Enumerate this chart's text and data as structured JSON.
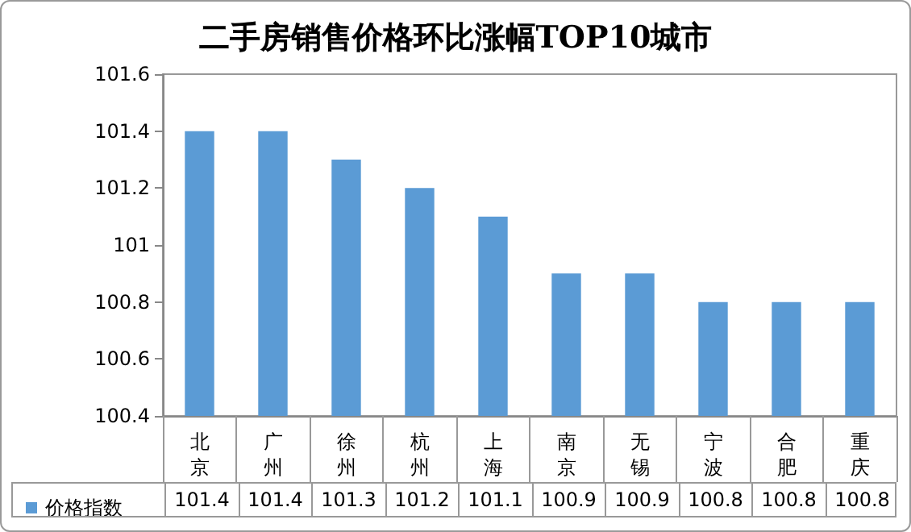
{
  "chart_data": {
    "type": "bar",
    "title": "二手房销售价格环比涨幅TOP10城市",
    "categories": [
      "北京",
      "广州",
      "徐州",
      "杭州",
      "上海",
      "南京",
      "无锡",
      "宁波",
      "合肥",
      "重庆"
    ],
    "series": [
      {
        "name": "价格指数",
        "color": "#5b9bd5",
        "values": [
          101.4,
          101.4,
          101.3,
          101.2,
          101.1,
          100.9,
          100.9,
          100.8,
          100.8,
          100.8
        ]
      }
    ],
    "ylim": [
      100.4,
      101.6
    ],
    "yticks": [
      100.4,
      100.6,
      100.8,
      101,
      101.2,
      101.4,
      101.6
    ],
    "grid": false,
    "legend": "bottom",
    "data_labels": true
  }
}
